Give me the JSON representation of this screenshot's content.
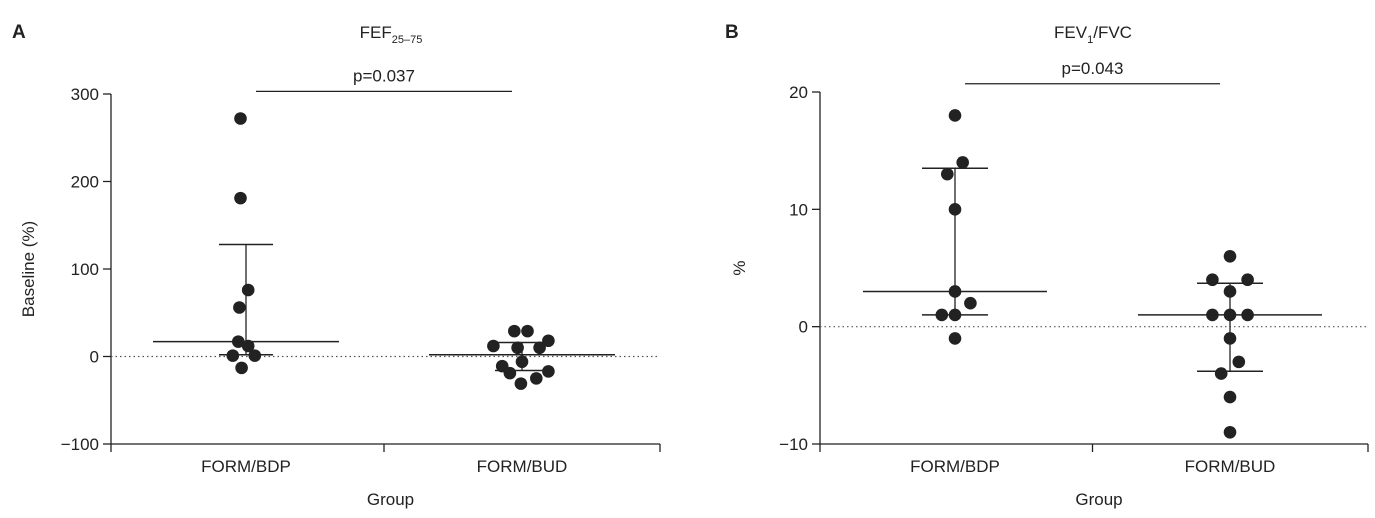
{
  "chart_data": [
    {
      "type": "scatter",
      "panel_letter": "A",
      "title": "FEF",
      "title_sub": "25–75",
      "title_sub_pos": "sub",
      "title_tail": "",
      "xlabel": "Group",
      "ylabel": "Baseline (%)",
      "categories": [
        "FORM/BDP",
        "FORM/BUD"
      ],
      "ylim": [
        -100,
        300
      ],
      "yticks": [
        -100,
        0,
        100,
        200,
        300
      ],
      "ytick_labels": [
        "−100",
        "0",
        "100",
        "200",
        "300"
      ],
      "reference_line": 0,
      "points": [
        {
          "group": 0,
          "offset": -0.25,
          "y": 272
        },
        {
          "group": 0,
          "offset": -0.25,
          "y": 181
        },
        {
          "group": 0,
          "offset": 0.1,
          "y": 76
        },
        {
          "group": 0,
          "offset": -0.3,
          "y": 56
        },
        {
          "group": 0,
          "offset": -0.35,
          "y": 17
        },
        {
          "group": 0,
          "offset": 0.1,
          "y": 12
        },
        {
          "group": 0,
          "offset": -0.6,
          "y": 1
        },
        {
          "group": 0,
          "offset": 0.4,
          "y": 1
        },
        {
          "group": 0,
          "offset": -0.2,
          "y": -13
        },
        {
          "group": 1,
          "offset": -1.3,
          "y": 12
        },
        {
          "group": 1,
          "offset": -0.2,
          "y": 10
        },
        {
          "group": 1,
          "offset": 0.8,
          "y": 10
        },
        {
          "group": 1,
          "offset": -0.35,
          "y": 29
        },
        {
          "group": 1,
          "offset": 0.25,
          "y": 29
        },
        {
          "group": 1,
          "offset": 1.2,
          "y": 18
        },
        {
          "group": 1,
          "offset": -0.9,
          "y": -11
        },
        {
          "group": 1,
          "offset": 0,
          "y": -6
        },
        {
          "group": 1,
          "offset": -0.55,
          "y": -19
        },
        {
          "group": 1,
          "offset": 1.2,
          "y": -17
        },
        {
          "group": 1,
          "offset": 0.65,
          "y": -25
        },
        {
          "group": 1,
          "offset": -0.05,
          "y": -31
        }
      ],
      "summary": [
        {
          "group": 0,
          "median": 17,
          "q1": 2,
          "q3": 128
        },
        {
          "group": 1,
          "median": 2,
          "q1": -16,
          "q3": 16
        }
      ],
      "significance": {
        "label": "p=0.037",
        "y": 303
      }
    },
    {
      "type": "scatter",
      "panel_letter": "B",
      "title": "FEV",
      "title_sub": "1",
      "title_sub_pos": "sub",
      "title_tail": "/FVC",
      "xlabel": "Group",
      "ylabel": "%",
      "categories": [
        "FORM/BDP",
        "FORM/BUD"
      ],
      "ylim": [
        -10,
        20
      ],
      "yticks": [
        -10,
        0,
        10,
        20
      ],
      "ytick_labels": [
        "−10",
        "0",
        "10",
        "20"
      ],
      "reference_line": 0,
      "points": [
        {
          "group": 0,
          "offset": 0,
          "y": 18
        },
        {
          "group": 0,
          "offset": 0.35,
          "y": 14
        },
        {
          "group": 0,
          "offset": -0.35,
          "y": 13
        },
        {
          "group": 0,
          "offset": 0,
          "y": 10
        },
        {
          "group": 0,
          "offset": 0,
          "y": 3
        },
        {
          "group": 0,
          "offset": 0.7,
          "y": 2
        },
        {
          "group": 0,
          "offset": -0.6,
          "y": 1
        },
        {
          "group": 0,
          "offset": 0,
          "y": 1
        },
        {
          "group": 0,
          "offset": 0,
          "y": -1
        },
        {
          "group": 1,
          "offset": 0,
          "y": 6
        },
        {
          "group": 1,
          "offset": -0.8,
          "y": 4
        },
        {
          "group": 1,
          "offset": 0.8,
          "y": 4
        },
        {
          "group": 1,
          "offset": 0,
          "y": 3
        },
        {
          "group": 1,
          "offset": -0.8,
          "y": 1
        },
        {
          "group": 1,
          "offset": 0,
          "y": 1
        },
        {
          "group": 1,
          "offset": 0.8,
          "y": 1
        },
        {
          "group": 1,
          "offset": 0,
          "y": -1
        },
        {
          "group": 1,
          "offset": 0.4,
          "y": -3
        },
        {
          "group": 1,
          "offset": -0.4,
          "y": -4
        },
        {
          "group": 1,
          "offset": 0,
          "y": -6
        },
        {
          "group": 1,
          "offset": 0,
          "y": -9
        }
      ],
      "summary": [
        {
          "group": 0,
          "median": 3,
          "q1": 1,
          "q3": 13.5
        },
        {
          "group": 1,
          "median": 1,
          "q1": -3.8,
          "q3": 3.7
        }
      ],
      "significance": {
        "label": "p=0.043",
        "y": 20.7
      }
    }
  ],
  "colors": {
    "marker": "#222222",
    "axis": "#222222",
    "reference_line": "#555555"
  }
}
